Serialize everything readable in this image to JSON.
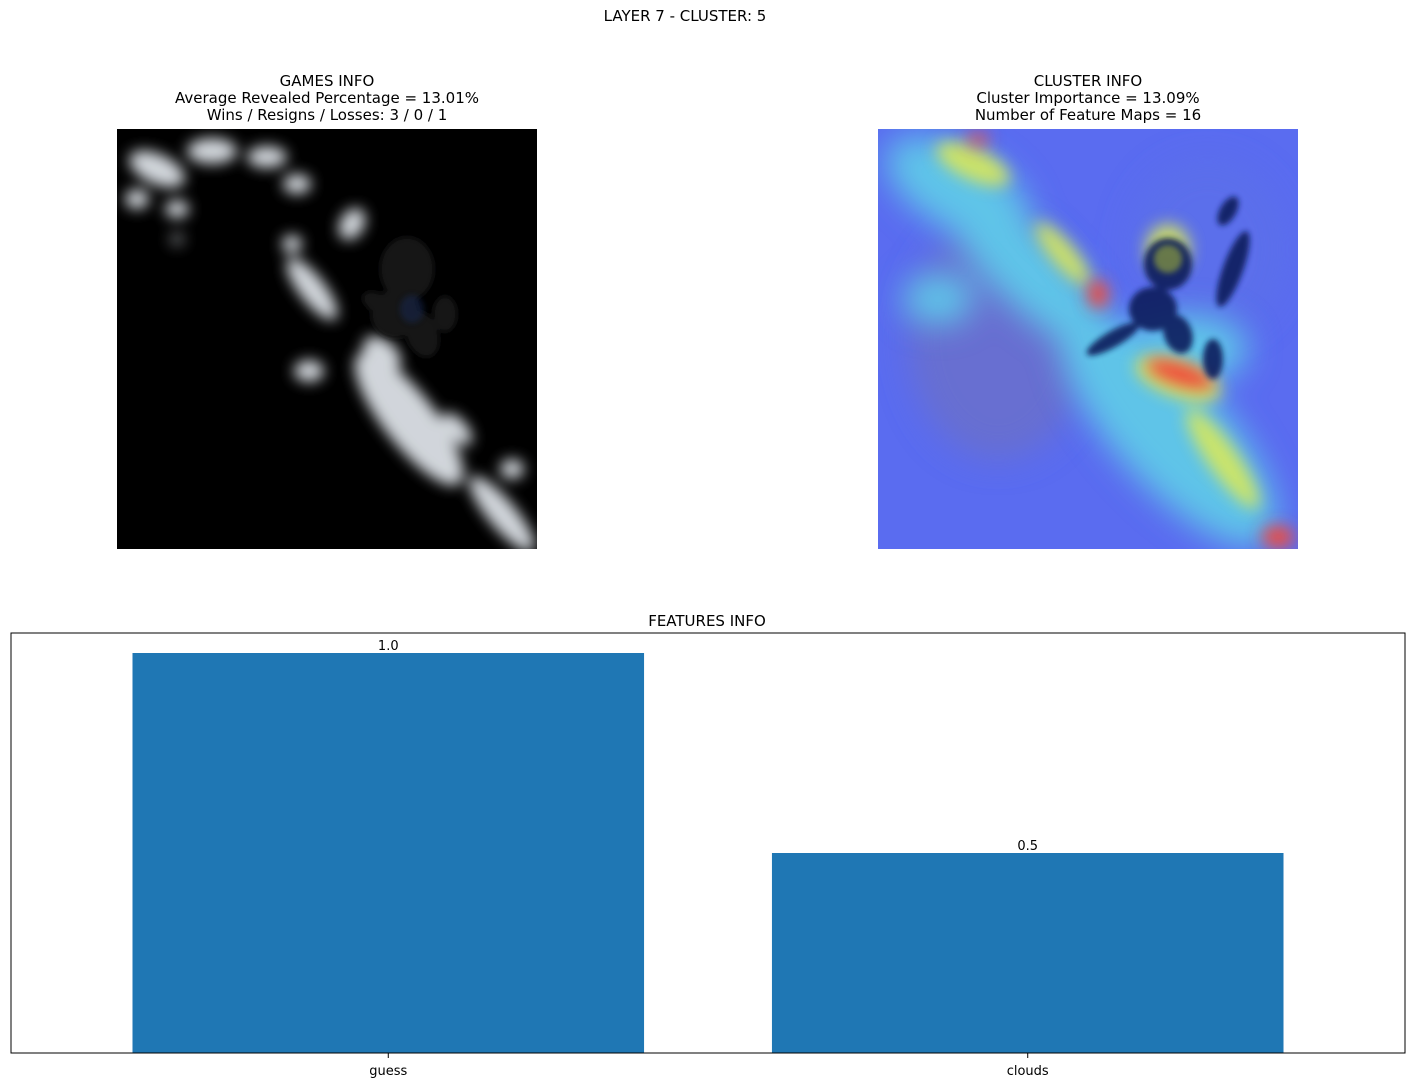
{
  "suptitle": "LAYER 7 - CLUSTER: 5",
  "games_info": {
    "title": "GAMES INFO",
    "avg_revealed": "Average Revealed Percentage = 13.01%",
    "record": "Wins / Resigns / Losses: 3 / 0 / 1"
  },
  "cluster_info": {
    "title": "CLUSTER INFO",
    "importance": "Cluster Importance = 13.09%",
    "feature_maps": "Number of Feature Maps = 16"
  },
  "colors": {
    "bar": "#1f77b4",
    "masked_background": "#000000",
    "heatmap_low": "#5a6cf0",
    "heatmap_high": "#f24a3a"
  },
  "chart_data": {
    "type": "bar",
    "title": "FEATURES INFO",
    "categories": [
      "guess",
      "clouds"
    ],
    "values": [
      1.0,
      0.5
    ],
    "data_labels": [
      "1.0",
      "0.5"
    ],
    "xlabel": "",
    "ylabel": "",
    "ylim": [
      0,
      1.05
    ],
    "yticks_visible": false,
    "grid": false
  }
}
